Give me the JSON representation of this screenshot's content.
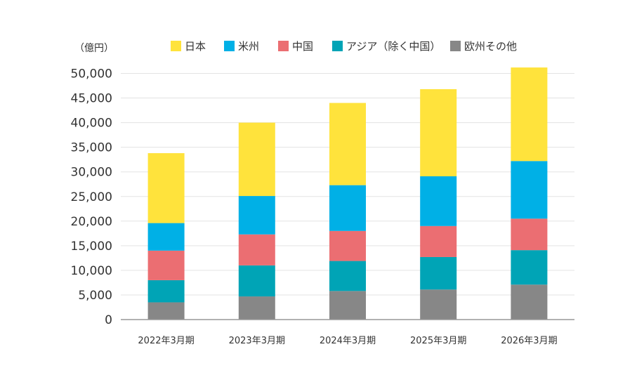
{
  "chart_data": {
    "type": "bar",
    "stacked": true,
    "unit_label": "（億円）",
    "categories": [
      "2022年3月期",
      "2023年3月期",
      "2024年3月期",
      "2025年3月期",
      "2026年3月期"
    ],
    "series": [
      {
        "name": "欧州その他",
        "color": "#878787",
        "values": [
          3500,
          4700,
          5800,
          6100,
          7100
        ]
      },
      {
        "name": "アジア（除く中国）",
        "color": "#00A4B6",
        "values": [
          4500,
          6300,
          6100,
          6600,
          7000
        ]
      },
      {
        "name": "中国",
        "color": "#EB6E72",
        "values": [
          6000,
          6300,
          6100,
          6300,
          6400
        ]
      },
      {
        "name": "米州",
        "color": "#00B0E6",
        "values": [
          5600,
          7800,
          9300,
          10100,
          11700
        ]
      },
      {
        "name": "日本",
        "color": "#FFE33C",
        "values": [
          14200,
          14900,
          16700,
          17700,
          19000
        ]
      }
    ],
    "legend_order": [
      "日本",
      "米州",
      "中国",
      "アジア（除く中国）",
      "欧州その他"
    ],
    "ylim": [
      0,
      50000
    ],
    "yticks": [
      "0",
      "5,000",
      "10,000",
      "15,000",
      "20,000",
      "25,000",
      "30,000",
      "35,000",
      "40,000",
      "45,000",
      "50,000"
    ],
    "grid": true,
    "legend_position": "top"
  }
}
